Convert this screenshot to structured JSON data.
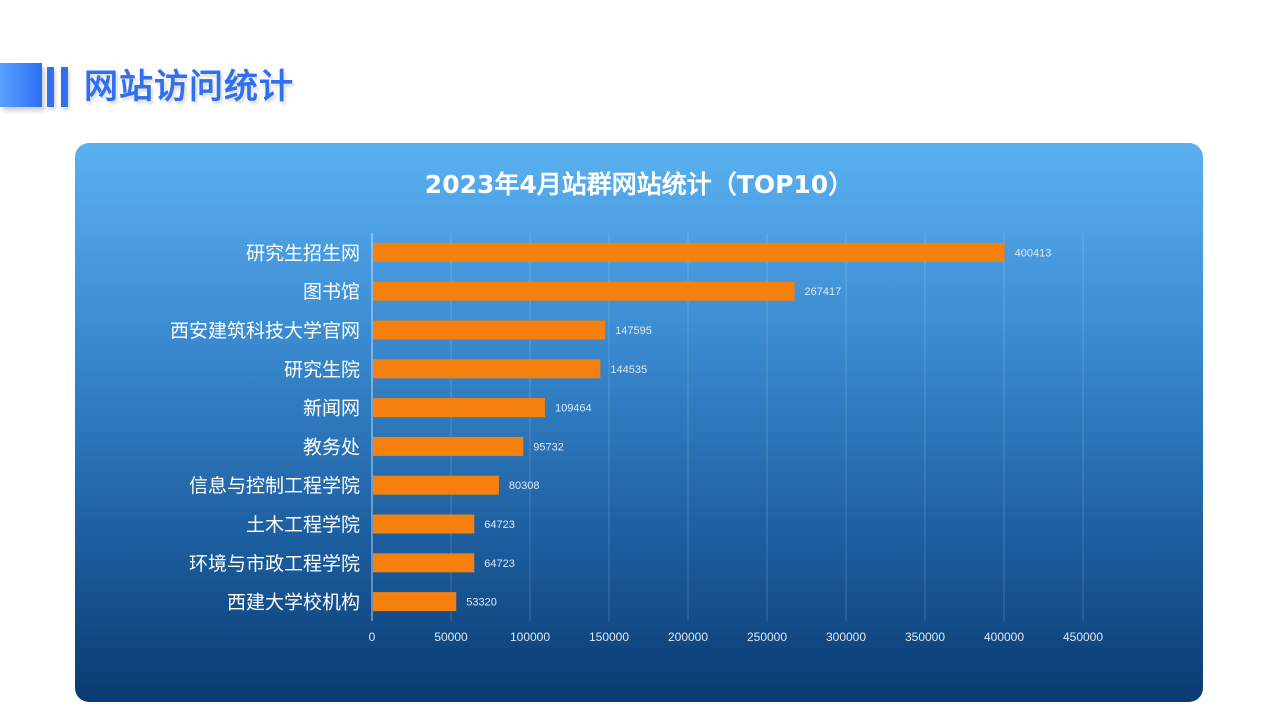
{
  "header": {
    "title": "网站访问统计"
  },
  "colors": {
    "accent": "#2f6ff0",
    "bar": "#f5800e",
    "panel_top": "#5bb1f0",
    "panel_bottom": "#0a3b71"
  },
  "chart_data": {
    "type": "bar",
    "orientation": "horizontal",
    "title": "2023年4月站群网站统计（TOP10）",
    "categories": [
      "研究生招生网",
      "图书馆",
      "西安建筑科技大学官网",
      "研究生院",
      "新闻网",
      "教务处",
      "信息与控制工程学院",
      "土木工程学院",
      "环境与市政工程学院",
      "西建大学校机构"
    ],
    "values": [
      400413,
      267417,
      147595,
      144535,
      109464,
      95732,
      80308,
      64723,
      64723,
      53320
    ],
    "xlim": [
      0,
      450000
    ],
    "xticks": [
      0,
      50000,
      100000,
      150000,
      200000,
      250000,
      300000,
      350000,
      400000,
      450000
    ],
    "grid": true,
    "data_labels": true
  }
}
